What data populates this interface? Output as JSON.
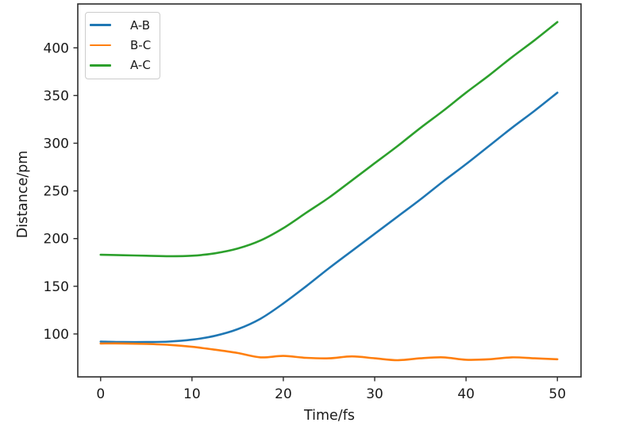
{
  "figure": {
    "background": "#ffffff",
    "spine_color": "#2b2b2b",
    "tick_color": "#2b2b2b",
    "text_color": "#1a1a1a"
  },
  "chart_data": {
    "type": "line",
    "title": "",
    "xlabel": "Time/fs",
    "ylabel": "Distance/pm",
    "x": [
      0,
      2.5,
      5,
      7.5,
      10,
      12.5,
      15,
      17.5,
      20,
      22.5,
      25,
      27.5,
      30,
      32.5,
      35,
      37.5,
      40,
      42.5,
      45,
      47.5,
      50
    ],
    "series": [
      {
        "name": "A-B",
        "color": "#1f77b4",
        "values": [
          92,
          91.5,
          91.5,
          92,
          94,
          98,
          105,
          116,
          132,
          150,
          169,
          187,
          205,
          223,
          241,
          260,
          278,
          297,
          316,
          334,
          353
        ]
      },
      {
        "name": "B-C",
        "color": "#ff7f0e",
        "values": [
          90,
          90,
          89.5,
          88.5,
          86.5,
          83.5,
          80,
          75.5,
          77,
          75,
          74.5,
          76.5,
          74.5,
          72.5,
          74.5,
          75.5,
          73,
          73.5,
          75.5,
          74.5,
          73.5
        ]
      },
      {
        "name": "A-C",
        "color": "#2ca02c",
        "values": [
          183,
          182.5,
          182,
          181.5,
          182,
          184.5,
          189.5,
          198,
          211,
          227,
          243,
          261,
          279,
          297,
          316,
          334,
          353,
          371,
          390,
          408,
          427
        ]
      }
    ],
    "xlim": [
      -2.5,
      52.5
    ],
    "ylim": [
      55,
      446
    ],
    "x_ticks": [
      0,
      10,
      20,
      30,
      40,
      50
    ],
    "y_ticks": [
      100,
      150,
      200,
      250,
      300,
      350,
      400
    ],
    "grid": false,
    "legend_position": "upper left",
    "line_width": 2.6
  }
}
